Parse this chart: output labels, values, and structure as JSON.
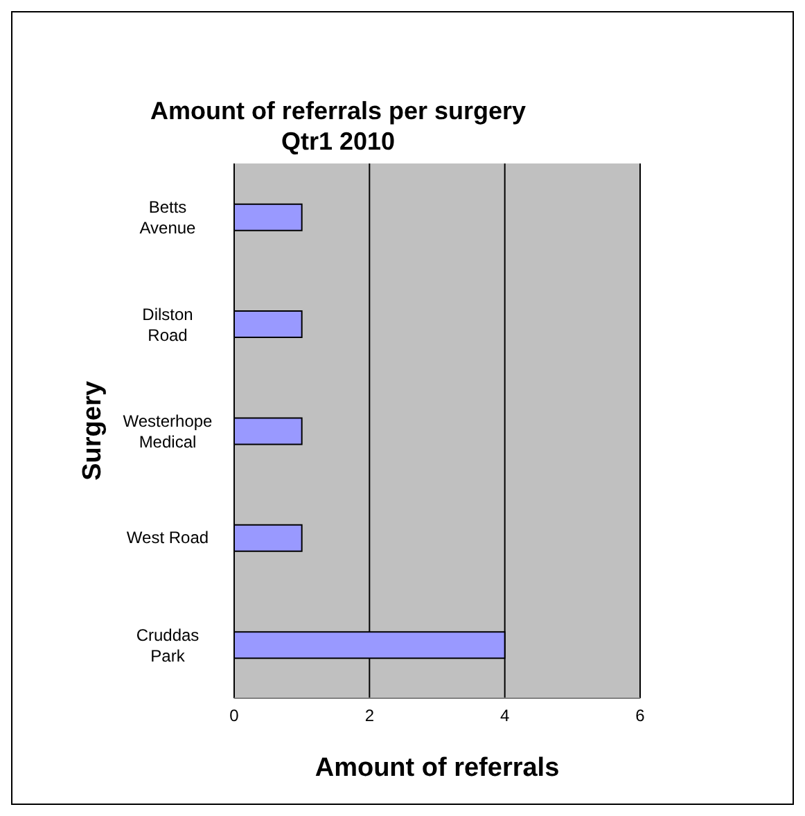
{
  "chart_data": {
    "type": "bar",
    "orientation": "horizontal",
    "title": "Amount of referrals per surgery\nQtr1 2010",
    "xlabel": "Amount of referrals",
    "ylabel": "Surgery",
    "categories": [
      "Betts Avenue",
      "Dilston Road",
      "Westerhope Medical",
      "West Road",
      "Cruddas Park"
    ],
    "values": [
      1,
      1,
      1,
      1,
      4
    ],
    "color": "#9999ff",
    "xlim": [
      0,
      6
    ],
    "xticks": [
      0,
      2,
      4,
      6
    ],
    "grid": "x"
  }
}
